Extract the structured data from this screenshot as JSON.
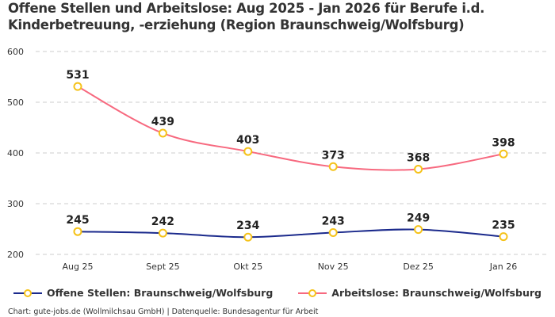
{
  "title": "Offene Stellen und Arbeitslose: Aug 2025 - Jan 2026 für Berufe i.d. Kinderbetreuung, -erziehung (Region Braunschweig/Wolfsburg)",
  "credit": "Chart: gute-jobs.de (Wollmilchsau GmbH) | Datenquelle: Bundesagentur für Arbeit",
  "chart_data": {
    "type": "line",
    "title": "Offene Stellen und Arbeitslose: Aug 2025 - Jan 2026 für Berufe i.d. Kinderbetreuung, -erziehung (Region Braunschweig/Wolfsburg)",
    "categories": [
      "Aug 25",
      "Sept 25",
      "Okt 25",
      "Nov 25",
      "Dez 25",
      "Jan 26"
    ],
    "yticks": [
      200,
      300,
      400,
      500,
      600
    ],
    "ylim": [
      200,
      600
    ],
    "grid": "horizontal dashed",
    "legend": "bottom",
    "marker_color": "#f5c219",
    "series": [
      {
        "name": "Offene Stellen: Braunschweig/Wolfsburg",
        "color": "#1b2a8c",
        "values": [
          245,
          242,
          234,
          243,
          249,
          235
        ]
      },
      {
        "name": "Arbeitslose: Braunschweig/Wolfsburg",
        "color": "#f7697f",
        "values": [
          531,
          439,
          403,
          373,
          368,
          398
        ]
      }
    ]
  }
}
